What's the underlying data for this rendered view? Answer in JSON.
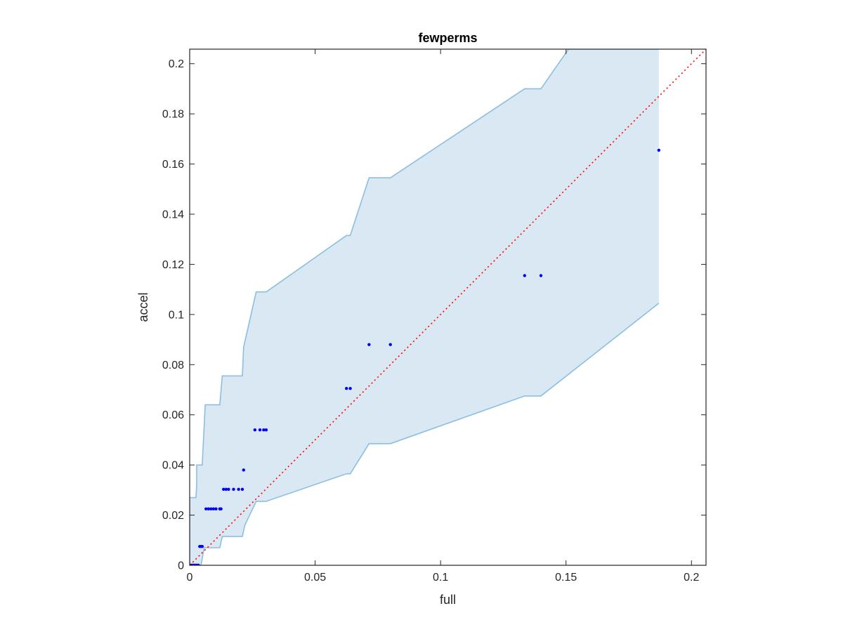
{
  "chart_data": {
    "type": "scatter",
    "title": "fewperms",
    "xlabel": "full",
    "ylabel": "accel",
    "xlim": [
      0,
      0.2058
    ],
    "ylim": [
      0,
      0.2058
    ],
    "xticks": [
      0,
      0.05,
      0.1,
      0.15,
      0.2
    ],
    "xtick_labels": [
      "0",
      "0.05",
      "0.1",
      "0.15",
      "0.2"
    ],
    "yticks": [
      0,
      0.02,
      0.04,
      0.06,
      0.08,
      0.1,
      0.12,
      0.14,
      0.16,
      0.18,
      0.2
    ],
    "ytick_labels": [
      "0",
      "0.02",
      "0.04",
      "0.06",
      "0.08",
      "0.1",
      "0.12",
      "0.14",
      "0.16",
      "0.18",
      "0.2"
    ],
    "grid": false,
    "colors": {
      "band_fill": "#dae8f4",
      "band_edge": "#8cbfde",
      "points": "#0000ff",
      "identity_line": "#ff0000",
      "axes": "#262626"
    },
    "identity_line": {
      "style": "dotted",
      "from": [
        0,
        0
      ],
      "to": [
        0.2058,
        0.2058
      ]
    },
    "band": {
      "upper": [
        [
          0,
          0.027
        ],
        [
          0.0025,
          0.027
        ],
        [
          0.0028,
          0.032
        ],
        [
          0.0028,
          0.04
        ],
        [
          0.005,
          0.04
        ],
        [
          0.0062,
          0.064
        ],
        [
          0.012,
          0.064
        ],
        [
          0.013,
          0.0755
        ],
        [
          0.021,
          0.0755
        ],
        [
          0.0215,
          0.087
        ],
        [
          0.0265,
          0.109
        ],
        [
          0.0305,
          0.109
        ],
        [
          0.0625,
          0.1315
        ],
        [
          0.064,
          0.1315
        ],
        [
          0.0715,
          0.1545
        ],
        [
          0.08,
          0.1545
        ],
        [
          0.1335,
          0.19
        ],
        [
          0.14,
          0.19
        ],
        [
          0.151,
          0.2058
        ],
        [
          0.187,
          0.2058
        ]
      ],
      "lower": [
        [
          0,
          0
        ],
        [
          0.0045,
          0
        ],
        [
          0.0058,
          0.007
        ],
        [
          0.0075,
          0.007
        ],
        [
          0.012,
          0.007
        ],
        [
          0.013,
          0.0115
        ],
        [
          0.021,
          0.0115
        ],
        [
          0.022,
          0.016
        ],
        [
          0.0265,
          0.0255
        ],
        [
          0.0305,
          0.0255
        ],
        [
          0.0625,
          0.0365
        ],
        [
          0.064,
          0.0365
        ],
        [
          0.0715,
          0.0485
        ],
        [
          0.08,
          0.0485
        ],
        [
          0.1335,
          0.0675
        ],
        [
          0.14,
          0.0675
        ],
        [
          0.187,
          0.1045
        ]
      ]
    },
    "points": [
      [
        0,
        0
      ],
      [
        0.0005,
        0
      ],
      [
        0.001,
        0
      ],
      [
        0.0015,
        0
      ],
      [
        0.002,
        0
      ],
      [
        0.0025,
        0
      ],
      [
        0.003,
        0
      ],
      [
        0.0035,
        0
      ],
      [
        0.004,
        0.0075
      ],
      [
        0.0045,
        0.0075
      ],
      [
        0.005,
        0.0075
      ],
      [
        0.0065,
        0.0225
      ],
      [
        0.0075,
        0.0225
      ],
      [
        0.0085,
        0.0225
      ],
      [
        0.0095,
        0.0225
      ],
      [
        0.0105,
        0.0225
      ],
      [
        0.012,
        0.0225
      ],
      [
        0.0125,
        0.0225
      ],
      [
        0.0135,
        0.0303
      ],
      [
        0.0145,
        0.0303
      ],
      [
        0.0155,
        0.0303
      ],
      [
        0.0175,
        0.0303
      ],
      [
        0.0195,
        0.0303
      ],
      [
        0.021,
        0.0303
      ],
      [
        0.0215,
        0.038
      ],
      [
        0.026,
        0.054
      ],
      [
        0.028,
        0.054
      ],
      [
        0.0295,
        0.054
      ],
      [
        0.0305,
        0.054
      ],
      [
        0.0625,
        0.0705
      ],
      [
        0.064,
        0.0705
      ],
      [
        0.0715,
        0.088
      ],
      [
        0.08,
        0.088
      ],
      [
        0.1335,
        0.1155
      ],
      [
        0.14,
        0.1155
      ],
      [
        0.187,
        0.1655
      ]
    ]
  }
}
